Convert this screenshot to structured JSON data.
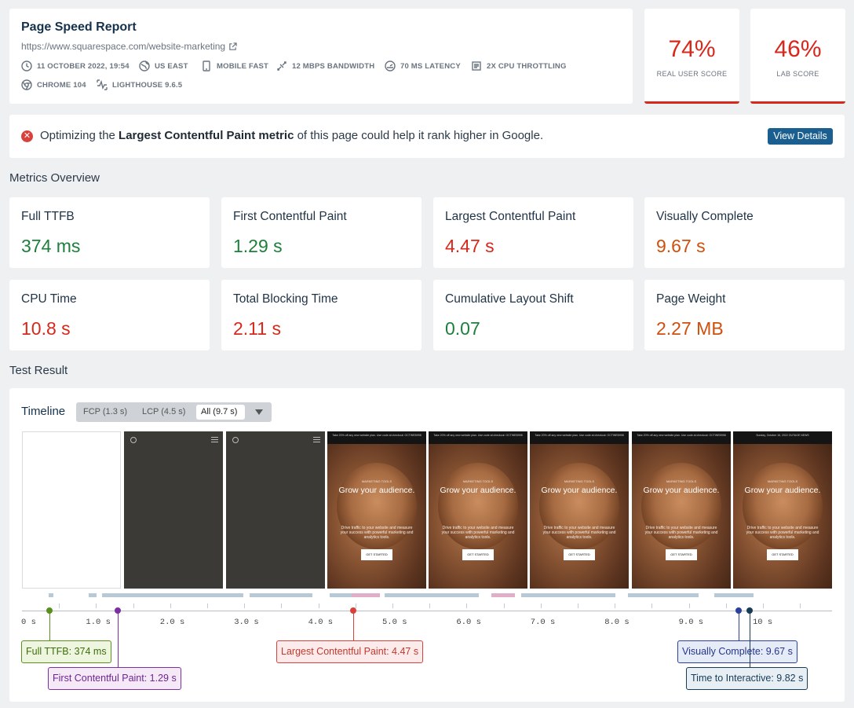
{
  "header": {
    "title": "Page Speed Report",
    "url": "https://www.squarespace.com/website-marketing",
    "meta": [
      {
        "icon": "clock-icon",
        "label": "11 OCTOBER 2022, 19:54"
      },
      {
        "icon": "location-icon",
        "label": "US EAST"
      },
      {
        "icon": "phone-icon",
        "label": "MOBILE FAST"
      },
      {
        "icon": "bandwidth-icon",
        "label": "12 MBPS BANDWIDTH"
      },
      {
        "icon": "gauge-icon",
        "label": "70 MS LATENCY"
      },
      {
        "icon": "cpu-icon",
        "label": "2X CPU THROTTLING"
      },
      {
        "icon": "chrome-icon",
        "label": "CHROME 104"
      },
      {
        "icon": "lighthouse-icon",
        "label": "LIGHTHOUSE 9.6.5"
      }
    ]
  },
  "scores": {
    "real_user": {
      "value": "74%",
      "label": "REAL USER SCORE"
    },
    "lab": {
      "value": "46%",
      "label": "LAB SCORE"
    }
  },
  "alert": {
    "prefix": "Optimizing the ",
    "bold": "Largest Contentful Paint metric",
    "suffix": " of this page could help it rank higher in Google.",
    "button": "View Details"
  },
  "sections": {
    "metrics": "Metrics Overview",
    "test": "Test Result"
  },
  "metrics": [
    {
      "name": "Full TTFB",
      "value": "374 ms",
      "status": "good"
    },
    {
      "name": "First Contentful Paint",
      "value": "1.29 s",
      "status": "good"
    },
    {
      "name": "Largest Contentful Paint",
      "value": "4.47 s",
      "status": "poor"
    },
    {
      "name": "Visually Complete",
      "value": "9.67 s",
      "status": "needs-improvement"
    },
    {
      "name": "CPU Time",
      "value": "10.8 s",
      "status": "poor"
    },
    {
      "name": "Total Blocking Time",
      "value": "2.11 s",
      "status": "poor"
    },
    {
      "name": "Cumulative Layout Shift",
      "value": "0.07",
      "status": "good"
    },
    {
      "name": "Page Weight",
      "value": "2.27 MB",
      "status": "needs-improvement"
    }
  ],
  "timeline": {
    "title": "Timeline",
    "options": [
      "FCP (1.3 s)",
      "LCP (4.5 s)",
      "All (9.7 s)"
    ],
    "selected": "All (9.7 s)",
    "axis_labels": [
      "0 s",
      "1.0 s",
      "2.0 s",
      "3.0 s",
      "4.0 s",
      "5.0 s",
      "6.0 s",
      "7.0 s",
      "8.0 s",
      "9.0 s",
      "10 s"
    ],
    "frame_text": {
      "banner": "Take 20% off any new website plan. Use code at checkout: OCTWEB998",
      "banner_alt": "Sunday, October 16, 2022 OUTAGE NEWS",
      "kicker": "MARKETING TOOLS",
      "headline": "Grow your audience.",
      "body": "Drive traffic to your website and measure your success with powerful marketing and analytics tools.",
      "cta": "GET STARTED"
    },
    "markers": [
      {
        "label": "Full TTFB: 374 ms",
        "time_s": 0.374,
        "color": "#5a8f1d"
      },
      {
        "label": "First Contentful Paint: 1.29 s",
        "time_s": 1.29,
        "color": "#7b2fa3"
      },
      {
        "label": "Largest Contentful Paint: 4.47 s",
        "time_s": 4.47,
        "color": "#d8423b"
      },
      {
        "label": "Visually Complete: 9.67 s",
        "time_s": 9.67,
        "color": "#2b3f9c"
      },
      {
        "label": "Time to Interactive: 9.82 s",
        "time_s": 9.82,
        "color": "#173c55"
      }
    ]
  }
}
